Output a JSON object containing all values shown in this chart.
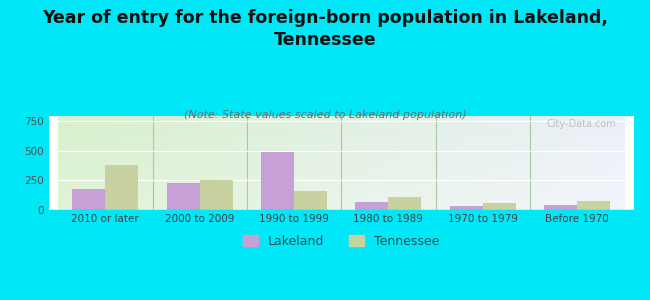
{
  "title": "Year of entry for the foreign-born population in Lakeland,\nTennessee",
  "subtitle": "(Note: State values scaled to Lakeland population)",
  "categories": [
    "2010 or later",
    "2000 to 2009",
    "1990 to 1999",
    "1980 to 1989",
    "1970 to 1979",
    "Before 1970"
  ],
  "lakeland_values": [
    175,
    230,
    487,
    65,
    35,
    45
  ],
  "tennessee_values": [
    380,
    255,
    165,
    110,
    60,
    80
  ],
  "lakeland_color": "#c8a0d8",
  "tennessee_color": "#c8d2a0",
  "background_color": "#00e8f8",
  "ylim": [
    0,
    800
  ],
  "yticks": [
    0,
    250,
    500,
    750
  ],
  "bar_width": 0.35,
  "title_fontsize": 12.5,
  "subtitle_fontsize": 8,
  "tick_fontsize": 7.5,
  "legend_fontsize": 9,
  "watermark": "City-Data.com"
}
